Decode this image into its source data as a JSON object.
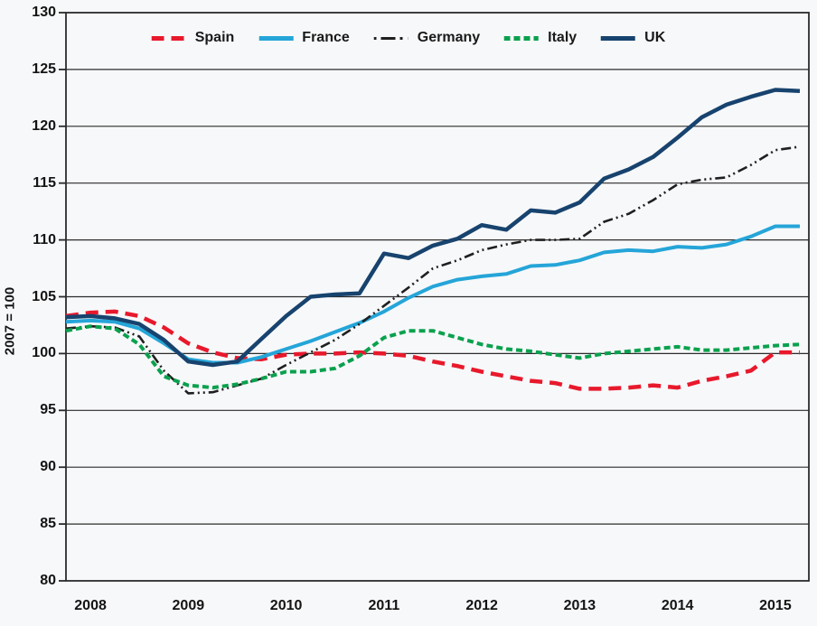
{
  "chart_data": {
    "type": "line",
    "title": "",
    "xlabel": "",
    "ylabel": "2007 = 100",
    "ylim": [
      80,
      130
    ],
    "ytick_step": 5,
    "ytick_labels": [
      "130",
      "125",
      "120",
      "115",
      "110",
      "105",
      "100",
      "95",
      "90",
      "85",
      "80"
    ],
    "xtick_labels": [
      "2008",
      "2009",
      "2010",
      "2011",
      "2012",
      "2013",
      "2014",
      "2015"
    ],
    "xtick_indices": [
      1,
      5,
      9,
      13,
      17,
      21,
      25,
      29
    ],
    "x_frequency": "quarterly",
    "x_range": "2007Q4 to 2015Q2",
    "grid": "horizontal",
    "legend_position": "top",
    "frame_color": "#2b2b2b",
    "background_color": "#f7f8fa",
    "series": [
      {
        "name": "Spain",
        "color": "#e8192c",
        "style": "dashed",
        "values": [
          103.3,
          103.6,
          103.7,
          103.3,
          102.3,
          100.9,
          100.1,
          99.6,
          99.5,
          99.9,
          100.0,
          100.0,
          100.1,
          100.0,
          99.8,
          99.3,
          98.9,
          98.4,
          98.0,
          97.6,
          97.4,
          96.9,
          96.9,
          97.0,
          97.2,
          97.0,
          97.6,
          98.0,
          98.5,
          100.1,
          100.1
        ]
      },
      {
        "name": "France",
        "color": "#25a5d8",
        "style": "solid",
        "values": [
          102.8,
          102.9,
          102.8,
          102.2,
          100.9,
          99.5,
          99.2,
          99.2,
          99.7,
          100.4,
          101.1,
          101.9,
          102.7,
          103.7,
          104.9,
          105.9,
          106.5,
          106.8,
          107.0,
          107.7,
          107.8,
          108.2,
          108.9,
          109.1,
          109.0,
          109.4,
          109.3,
          109.6,
          110.3,
          111.2,
          111.2
        ]
      },
      {
        "name": "Germany",
        "color": "#1f1f1f",
        "style": "dashdotdot",
        "values": [
          102.2,
          102.4,
          102.3,
          101.5,
          98.5,
          96.5,
          96.6,
          97.2,
          97.8,
          99.0,
          100.1,
          101.2,
          102.6,
          104.2,
          105.8,
          107.5,
          108.2,
          109.1,
          109.6,
          110.0,
          110.0,
          110.1,
          111.6,
          112.3,
          113.5,
          114.9,
          115.3,
          115.5,
          116.6,
          117.9,
          118.2
        ]
      },
      {
        "name": "Italy",
        "color": "#0aa14e",
        "style": "densedash",
        "values": [
          102.0,
          102.4,
          102.2,
          100.8,
          98.0,
          97.2,
          97.0,
          97.3,
          97.8,
          98.4,
          98.4,
          98.7,
          99.8,
          101.4,
          102.0,
          102.0,
          101.4,
          100.8,
          100.4,
          100.2,
          99.9,
          99.6,
          100.0,
          100.2,
          100.4,
          100.6,
          100.3,
          100.3,
          100.5,
          100.7,
          100.8
        ]
      },
      {
        "name": "UK",
        "color": "#17436e",
        "style": "solid",
        "values": [
          103.2,
          103.3,
          103.1,
          102.6,
          101.2,
          99.3,
          99.0,
          99.3,
          101.3,
          103.3,
          105.0,
          105.2,
          105.3,
          108.8,
          108.4,
          109.5,
          110.1,
          111.3,
          110.9,
          112.6,
          112.4,
          113.3,
          115.4,
          116.2,
          117.3,
          119.0,
          120.8,
          121.9,
          122.6,
          123.2,
          123.1
        ]
      }
    ]
  }
}
